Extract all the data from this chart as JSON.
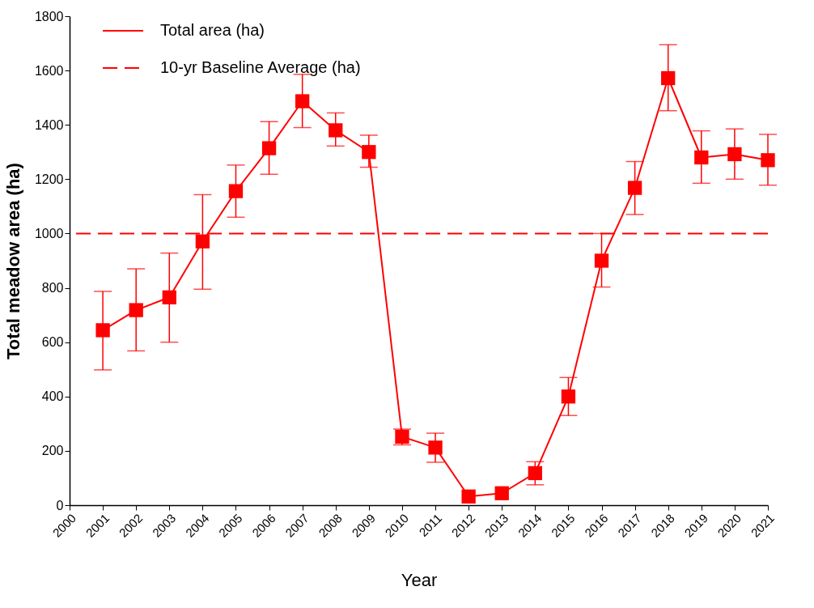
{
  "chart_data": {
    "type": "line",
    "xlabel": "Year",
    "ylabel": "Total meadow area (ha)",
    "x": [
      2001,
      2002,
      2003,
      2004,
      2005,
      2006,
      2007,
      2008,
      2009,
      2010,
      2011,
      2012,
      2013,
      2014,
      2015,
      2016,
      2017,
      2018,
      2019,
      2020,
      2021
    ],
    "series": [
      {
        "name": "Total area (ha)",
        "color": "#ff0000",
        "values": [
          644,
          718,
          765,
          971,
          1156,
          1314,
          1487,
          1380,
          1300,
          252,
          212,
          32,
          44,
          118,
          400,
          900,
          1168,
          1572,
          1280,
          1292,
          1270
        ],
        "errors": [
          [
            498,
            787
          ],
          [
            568,
            870
          ],
          [
            600,
            928
          ],
          [
            795,
            1143
          ],
          [
            1060,
            1252
          ],
          [
            1218,
            1412
          ],
          [
            1390,
            1586
          ],
          [
            1322,
            1444
          ],
          [
            1244,
            1362
          ],
          [
            222,
            280
          ],
          [
            158,
            265
          ],
          null,
          null,
          [
            75,
            160
          ],
          [
            330,
            470
          ],
          [
            803,
            1000
          ],
          [
            1070,
            1265
          ],
          [
            1452,
            1695
          ],
          [
            1185,
            1378
          ],
          [
            1200,
            1385
          ],
          [
            1178,
            1365
          ]
        ]
      }
    ],
    "ref_lines": [
      {
        "axis": "y",
        "value": 1000,
        "label": "10-yr Baseline Average (ha)",
        "color": "#ff0000",
        "line_style": "dashed"
      }
    ],
    "xlim": [
      2000,
      2021
    ],
    "xticks": [
      2000,
      2001,
      2002,
      2003,
      2004,
      2005,
      2006,
      2007,
      2008,
      2009,
      2010,
      2011,
      2012,
      2013,
      2014,
      2015,
      2016,
      2017,
      2018,
      2019,
      2020,
      2021
    ],
    "ylim": [
      0,
      1800
    ],
    "yticks": [
      0,
      200,
      400,
      600,
      800,
      1000,
      1200,
      1400,
      1600,
      1800
    ],
    "marker": "square",
    "line_style": "solid",
    "grid": false,
    "legend": "top left"
  }
}
